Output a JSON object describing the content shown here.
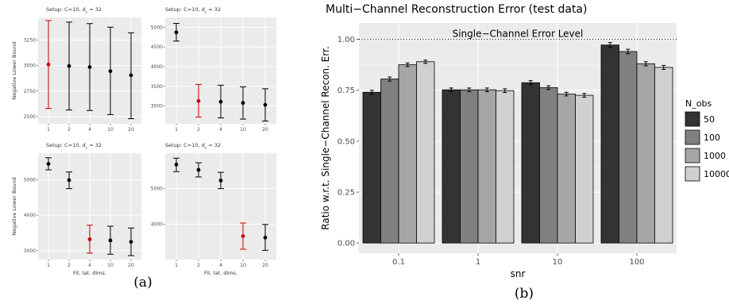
{
  "captions": {
    "a": "(a)",
    "b": "(b)"
  },
  "chart_data": [
    {
      "type": "scatter",
      "panel": "top-left",
      "title": "Setup: C=10, d_c = 32",
      "title_main": "Setup: C=10, d",
      "title_sub": "c",
      "title_tail": " = 32",
      "ylabel": "Negative Lower Bound",
      "xlabel": "",
      "categories": [
        "1",
        "2",
        "4",
        "10",
        "20"
      ],
      "ylim": [
        2430,
        3470
      ],
      "yticks": [
        2500,
        2750,
        3000,
        3250
      ],
      "highlight_color": "#cc0000",
      "points": [
        {
          "x": "1",
          "y": 3010,
          "lo": 2580,
          "hi": 3440,
          "highlight": true
        },
        {
          "x": "2",
          "y": 2995,
          "lo": 2565,
          "hi": 3425,
          "highlight": false
        },
        {
          "x": "4",
          "y": 2985,
          "lo": 2560,
          "hi": 3410,
          "highlight": false
        },
        {
          "x": "10",
          "y": 2945,
          "lo": 2520,
          "hi": 3375,
          "highlight": false
        },
        {
          "x": "20",
          "y": 2905,
          "lo": 2480,
          "hi": 3320,
          "highlight": false
        }
      ]
    },
    {
      "type": "scatter",
      "panel": "top-right",
      "title": "Setup: C=10, d_c = 32",
      "title_main": "Setup: C=10, d",
      "title_sub": "c",
      "title_tail": " = 32",
      "ylabel": "",
      "xlabel": "",
      "categories": [
        "1",
        "2",
        "4",
        "10",
        "20"
      ],
      "ylim": [
        2550,
        5250
      ],
      "yticks": [
        3000,
        3500,
        4000,
        4500,
        5000
      ],
      "highlight_color": "#cc0000",
      "points": [
        {
          "x": "1",
          "y": 4870,
          "lo": 4650,
          "hi": 5100,
          "highlight": false
        },
        {
          "x": "2",
          "y": 3130,
          "lo": 2720,
          "hi": 3550,
          "highlight": true
        },
        {
          "x": "4",
          "y": 3110,
          "lo": 2700,
          "hi": 3530,
          "highlight": false
        },
        {
          "x": "10",
          "y": 3080,
          "lo": 2670,
          "hi": 3490,
          "highlight": false
        },
        {
          "x": "20",
          "y": 3030,
          "lo": 2620,
          "hi": 3440,
          "highlight": false
        }
      ]
    },
    {
      "type": "scatter",
      "panel": "bottom-left",
      "title": "Setup: C=10, d_c = 32",
      "title_main": "Setup: C=10, d",
      "title_sub": "c",
      "title_tail": " = 32",
      "ylabel": "Negative Lower Bound",
      "xlabel": "Fit. lat. dims.",
      "categories": [
        "1",
        "2",
        "4",
        "10",
        "20"
      ],
      "ylim": [
        2750,
        5750
      ],
      "yticks": [
        3000,
        4000,
        5000
      ],
      "highlight_color": "#cc0000",
      "points": [
        {
          "x": "1",
          "y": 5450,
          "lo": 5280,
          "hi": 5620,
          "highlight": false
        },
        {
          "x": "2",
          "y": 4990,
          "lo": 4750,
          "hi": 5220,
          "highlight": false
        },
        {
          "x": "4",
          "y": 3320,
          "lo": 2930,
          "hi": 3720,
          "highlight": true
        },
        {
          "x": "10",
          "y": 3290,
          "lo": 2900,
          "hi": 3690,
          "highlight": false
        },
        {
          "x": "20",
          "y": 3250,
          "lo": 2860,
          "hi": 3640,
          "highlight": false
        }
      ]
    },
    {
      "type": "scatter",
      "panel": "bottom-right",
      "title": "Setup: C=10, d_c = 32",
      "title_main": "Setup: C=10, d",
      "title_sub": "c",
      "title_tail": " = 32",
      "ylabel": "",
      "xlabel": "Fit. lat. dims.",
      "categories": [
        "1",
        "2",
        "4",
        "10",
        "20"
      ],
      "ylim": [
        3000,
        6000
      ],
      "yticks": [
        4000,
        5000
      ],
      "highlight_color": "#cc0000",
      "points": [
        {
          "x": "1",
          "y": 5680,
          "lo": 5480,
          "hi": 5860,
          "highlight": false
        },
        {
          "x": "2",
          "y": 5530,
          "lo": 5330,
          "hi": 5730,
          "highlight": false
        },
        {
          "x": "4",
          "y": 5230,
          "lo": 5000,
          "hi": 5460,
          "highlight": false
        },
        {
          "x": "10",
          "y": 3660,
          "lo": 3290,
          "hi": 4030,
          "highlight": true
        },
        {
          "x": "20",
          "y": 3620,
          "lo": 3260,
          "hi": 3990,
          "highlight": false
        }
      ]
    },
    {
      "type": "bar",
      "panel": "b",
      "title": "Multi−Channel Reconstruction Error (test data)",
      "xlabel": "snr",
      "ylabel": "Ratio w.r.t. Single−Channel Recon. Err.",
      "categories": [
        "0.1",
        "1",
        "10",
        "100"
      ],
      "ylim": [
        -0.05,
        1.08
      ],
      "yticks": [
        "0.00",
        "0.25",
        "0.50",
        "0.75",
        "1.00"
      ],
      "reference_line": {
        "y": 1.0,
        "label": "Single−Channel Error Level",
        "style": "dotted"
      },
      "legend": {
        "title": "N_obs",
        "position": "right"
      },
      "series": [
        {
          "name": "50",
          "color": "#333333",
          "values": [
            0.74,
            0.752,
            0.787,
            0.972
          ],
          "err": [
            0.01,
            0.009,
            0.01,
            0.012
          ]
        },
        {
          "name": "100",
          "color": "#808080",
          "values": [
            0.805,
            0.752,
            0.763,
            0.94
          ],
          "err": [
            0.01,
            0.009,
            0.009,
            0.011
          ]
        },
        {
          "name": "1000",
          "color": "#a6a6a6",
          "values": [
            0.875,
            0.752,
            0.731,
            0.88
          ],
          "err": [
            0.009,
            0.009,
            0.009,
            0.01
          ]
        },
        {
          "name": "10000",
          "color": "#d0d0d0",
          "values": [
            0.89,
            0.748,
            0.725,
            0.862
          ],
          "err": [
            0.008,
            0.009,
            0.009,
            0.01
          ]
        }
      ]
    }
  ]
}
